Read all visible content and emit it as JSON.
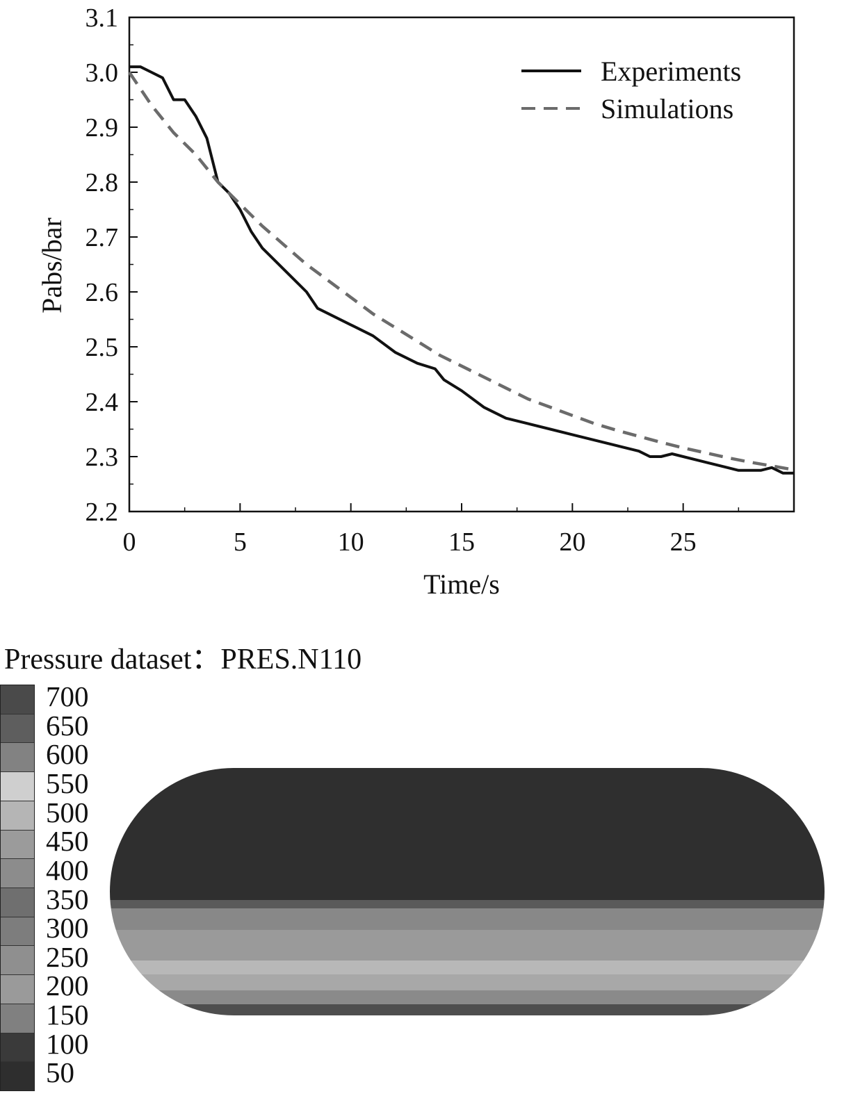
{
  "chart_data": {
    "type": "line",
    "xlabel": "Time/s",
    "ylabel": "Pabs/bar",
    "xlim": [
      0,
      30
    ],
    "ylim": [
      2.2,
      3.1
    ],
    "xticks": [
      0,
      5,
      10,
      15,
      20,
      25
    ],
    "yticks": [
      2.2,
      2.3,
      2.4,
      2.5,
      2.6,
      2.7,
      2.8,
      2.9,
      3.0,
      3.1
    ],
    "ytick_labels": [
      "2.2",
      "2.3",
      "2.4",
      "2.5",
      "2.6",
      "2.7",
      "2.8",
      "2.9",
      "3.0",
      "3.1"
    ],
    "grid": false,
    "legend_position": "top-right",
    "series": [
      {
        "name": "Experiments",
        "style": "solid",
        "color": "#111111",
        "x": [
          0,
          0.5,
          1.0,
          1.5,
          2.0,
          2.5,
          3.0,
          3.5,
          4.0,
          4.5,
          5.0,
          5.5,
          6.0,
          7.0,
          8.0,
          8.5,
          9.0,
          10.0,
          11.0,
          12.0,
          13.0,
          13.8,
          14.2,
          15.0,
          16.0,
          17.0,
          18.0,
          19.0,
          20.0,
          21.0,
          22.0,
          23.0,
          23.5,
          24.0,
          24.5,
          25.0,
          26.0,
          27.0,
          27.5,
          28.0,
          28.5,
          29.0,
          29.5,
          30.0
        ],
        "y": [
          3.01,
          3.01,
          3.0,
          2.99,
          2.95,
          2.95,
          2.92,
          2.88,
          2.8,
          2.78,
          2.75,
          2.71,
          2.68,
          2.64,
          2.6,
          2.57,
          2.56,
          2.54,
          2.52,
          2.49,
          2.47,
          2.46,
          2.44,
          2.42,
          2.39,
          2.37,
          2.36,
          2.35,
          2.34,
          2.33,
          2.32,
          2.31,
          2.3,
          2.3,
          2.305,
          2.3,
          2.29,
          2.28,
          2.275,
          2.275,
          2.275,
          2.28,
          2.27,
          2.27
        ]
      },
      {
        "name": "Simulations",
        "style": "dashed",
        "color": "#6b6b6b",
        "x": [
          0,
          1,
          2,
          3,
          4,
          5,
          6,
          7,
          8,
          9,
          10,
          11,
          12,
          13,
          14,
          15,
          16,
          17,
          18,
          19,
          20,
          21,
          22,
          23,
          24,
          25,
          26,
          27,
          28,
          29,
          30
        ],
        "y": [
          3.0,
          2.94,
          2.89,
          2.85,
          2.8,
          2.76,
          2.72,
          2.685,
          2.65,
          2.62,
          2.59,
          2.56,
          2.535,
          2.51,
          2.485,
          2.465,
          2.445,
          2.425,
          2.405,
          2.39,
          2.375,
          2.36,
          2.348,
          2.337,
          2.326,
          2.316,
          2.307,
          2.298,
          2.29,
          2.283,
          2.276
        ]
      }
    ]
  },
  "contour": {
    "title": "Pressure dataset：PRES.N110",
    "levels": [
      "700",
      "650",
      "600",
      "550",
      "500",
      "450",
      "400",
      "350",
      "300",
      "250",
      "200",
      "150",
      "100",
      "50"
    ],
    "colors": [
      "#4a4a4a",
      "#5e5e5e",
      "#828282",
      "#cfcfcf",
      "#b5b5b5",
      "#9b9b9b",
      "#8c8c8c",
      "#6f6f6f",
      "#7d7d7d",
      "#8f8f8f",
      "#9a9a9a",
      "#808080",
      "#3a3a3a",
      "#2e2e2e"
    ],
    "tank_bands": [
      {
        "color": "#2f2f2f",
        "weight": 48
      },
      {
        "color": "#5a5a5a",
        "weight": 3
      },
      {
        "color": "#888888",
        "weight": 8
      },
      {
        "color": "#9a9a9a",
        "weight": 11
      },
      {
        "color": "#b8b8b8",
        "weight": 5
      },
      {
        "color": "#a8a8a8",
        "weight": 6
      },
      {
        "color": "#8a8a8a",
        "weight": 5
      },
      {
        "color": "#4e4e4e",
        "weight": 4
      }
    ]
  }
}
